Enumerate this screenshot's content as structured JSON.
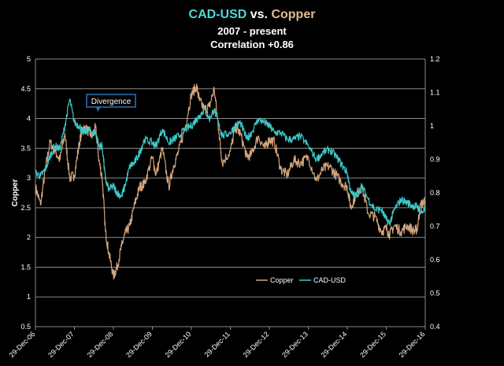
{
  "chart_data": {
    "type": "line",
    "title_parts": [
      {
        "text": "CAD-USD",
        "color": "#4fd7d7"
      },
      {
        "text": " vs. ",
        "color": "#ffffff"
      },
      {
        "text": "Copper",
        "color": "#e0bb98"
      }
    ],
    "subtitle": "2007 - present",
    "subtitle2": "Correlation  +0.86",
    "ylabel": "Copper",
    "y_left": {
      "min": 0.5,
      "max": 5,
      "ticks": [
        "0.5",
        "1",
        "1.5",
        "2",
        "2.5",
        "3",
        "3.5",
        "4",
        "4.5",
        "5"
      ]
    },
    "y_right": {
      "min": 0.4,
      "max": 1.2,
      "ticks": [
        "0.4",
        "0.5",
        "0.6",
        "0.7",
        "0.8",
        "0.9",
        "1",
        "1.1",
        "1.2"
      ]
    },
    "x_ticks": [
      "29-Dec-06",
      "29-Dec-07",
      "29-Dec-08",
      "29-Dec-09",
      "29-Dec-10",
      "29-Dec-11",
      "29-Dec-12",
      "29-Dec-13",
      "29-Dec-14",
      "29-Dec-15",
      "29-Dec-16"
    ],
    "x_range": [
      "2006-12-29",
      "2016-12-29"
    ],
    "grid": true,
    "annotation": {
      "text": "Divergence",
      "date": "2008-05-15",
      "value": 4.0
    },
    "legend": {
      "position": "bottom-right",
      "items": [
        "Copper",
        "CAD-USD"
      ]
    },
    "series": [
      {
        "name": "Copper",
        "axis": "left",
        "color": "#d4a57c",
        "points": [
          [
            "2006-12-29",
            2.85
          ],
          [
            "2007-02-15",
            2.55
          ],
          [
            "2007-04-01",
            3.15
          ],
          [
            "2007-05-15",
            3.6
          ],
          [
            "2007-07-01",
            3.45
          ],
          [
            "2007-08-15",
            3.3
          ],
          [
            "2007-10-01",
            3.75
          ],
          [
            "2007-11-15",
            3.0
          ],
          [
            "2007-12-29",
            3.05
          ],
          [
            "2008-02-15",
            3.6
          ],
          [
            "2008-03-15",
            3.85
          ],
          [
            "2008-05-01",
            3.8
          ],
          [
            "2008-06-15",
            3.7
          ],
          [
            "2008-07-15",
            3.85
          ],
          [
            "2008-08-15",
            3.3
          ],
          [
            "2008-09-15",
            3.0
          ],
          [
            "2008-10-15",
            2.1
          ],
          [
            "2008-11-15",
            1.75
          ],
          [
            "2008-12-29",
            1.35
          ],
          [
            "2009-02-01",
            1.5
          ],
          [
            "2009-03-15",
            1.85
          ],
          [
            "2009-04-15",
            2.05
          ],
          [
            "2009-06-01",
            2.2
          ],
          [
            "2009-07-15",
            2.55
          ],
          [
            "2009-09-01",
            2.85
          ],
          [
            "2009-10-15",
            2.9
          ],
          [
            "2009-12-29",
            3.35
          ],
          [
            "2010-02-01",
            3.05
          ],
          [
            "2010-04-01",
            3.5
          ],
          [
            "2010-06-01",
            2.85
          ],
          [
            "2010-07-15",
            3.2
          ],
          [
            "2010-09-01",
            3.45
          ],
          [
            "2010-11-01",
            3.85
          ],
          [
            "2010-12-29",
            4.4
          ],
          [
            "2011-02-15",
            4.55
          ],
          [
            "2011-03-15",
            4.3
          ],
          [
            "2011-05-01",
            4.15
          ],
          [
            "2011-06-15",
            4.2
          ],
          [
            "2011-08-01",
            4.5
          ],
          [
            "2011-09-15",
            3.75
          ],
          [
            "2011-10-15",
            3.25
          ],
          [
            "2011-12-29",
            3.45
          ],
          [
            "2012-02-15",
            3.85
          ],
          [
            "2012-04-01",
            3.75
          ],
          [
            "2012-06-01",
            3.35
          ],
          [
            "2012-07-15",
            3.4
          ],
          [
            "2012-09-15",
            3.7
          ],
          [
            "2012-11-15",
            3.5
          ],
          [
            "2012-12-29",
            3.65
          ],
          [
            "2013-02-15",
            3.6
          ],
          [
            "2013-04-15",
            3.15
          ],
          [
            "2013-06-15",
            3.05
          ],
          [
            "2013-08-15",
            3.3
          ],
          [
            "2013-10-15",
            3.25
          ],
          [
            "2013-12-29",
            3.35
          ],
          [
            "2014-03-15",
            2.95
          ],
          [
            "2014-05-15",
            3.15
          ],
          [
            "2014-07-15",
            3.2
          ],
          [
            "2014-09-15",
            3.05
          ],
          [
            "2014-11-15",
            2.9
          ],
          [
            "2014-12-29",
            2.85
          ],
          [
            "2015-02-01",
            2.5
          ],
          [
            "2015-03-15",
            2.7
          ],
          [
            "2015-05-15",
            2.85
          ],
          [
            "2015-07-15",
            2.4
          ],
          [
            "2015-09-15",
            2.35
          ],
          [
            "2015-11-15",
            2.1
          ],
          [
            "2015-12-29",
            2.15
          ],
          [
            "2016-02-01",
            2.05
          ],
          [
            "2016-03-15",
            2.2
          ],
          [
            "2016-05-15",
            2.1
          ],
          [
            "2016-07-15",
            2.2
          ],
          [
            "2016-09-15",
            2.1
          ],
          [
            "2016-10-15",
            2.15
          ],
          [
            "2016-11-15",
            2.55
          ],
          [
            "2016-12-29",
            2.6
          ]
        ]
      },
      {
        "name": "CAD-USD",
        "axis": "right",
        "color": "#3fc8c8",
        "points": [
          [
            "2006-12-29",
            0.86
          ],
          [
            "2007-02-15",
            0.85
          ],
          [
            "2007-04-01",
            0.87
          ],
          [
            "2007-05-15",
            0.91
          ],
          [
            "2007-07-01",
            0.94
          ],
          [
            "2007-08-15",
            0.93
          ],
          [
            "2007-10-01",
            1.0
          ],
          [
            "2007-11-15",
            1.08
          ],
          [
            "2007-12-29",
            1.01
          ],
          [
            "2008-02-15",
            1.0
          ],
          [
            "2008-03-15",
            0.98
          ],
          [
            "2008-05-01",
            0.99
          ],
          [
            "2008-06-15",
            0.98
          ],
          [
            "2008-07-15",
            0.98
          ],
          [
            "2008-08-15",
            0.94
          ],
          [
            "2008-09-15",
            0.94
          ],
          [
            "2008-10-15",
            0.84
          ],
          [
            "2008-11-15",
            0.81
          ],
          [
            "2008-12-29",
            0.82
          ],
          [
            "2009-02-01",
            0.8
          ],
          [
            "2009-03-15",
            0.79
          ],
          [
            "2009-04-15",
            0.82
          ],
          [
            "2009-06-01",
            0.88
          ],
          [
            "2009-07-15",
            0.89
          ],
          [
            "2009-09-01",
            0.92
          ],
          [
            "2009-10-15",
            0.96
          ],
          [
            "2009-12-29",
            0.95
          ],
          [
            "2010-02-01",
            0.94
          ],
          [
            "2010-04-01",
            0.99
          ],
          [
            "2010-06-01",
            0.95
          ],
          [
            "2010-07-15",
            0.96
          ],
          [
            "2010-09-01",
            0.97
          ],
          [
            "2010-11-01",
            0.99
          ],
          [
            "2010-12-29",
            1.0
          ],
          [
            "2011-02-15",
            1.02
          ],
          [
            "2011-03-15",
            1.03
          ],
          [
            "2011-05-01",
            1.05
          ],
          [
            "2011-06-15",
            1.02
          ],
          [
            "2011-08-01",
            1.05
          ],
          [
            "2011-09-15",
            1.0
          ],
          [
            "2011-10-15",
            0.97
          ],
          [
            "2011-12-29",
            0.98
          ],
          [
            "2012-02-15",
            1.0
          ],
          [
            "2012-04-01",
            1.01
          ],
          [
            "2012-06-01",
            0.96
          ],
          [
            "2012-07-15",
            0.98
          ],
          [
            "2012-09-15",
            1.02
          ],
          [
            "2012-11-15",
            1.01
          ],
          [
            "2012-12-29",
            1.0
          ],
          [
            "2013-02-15",
            0.98
          ],
          [
            "2013-04-15",
            0.98
          ],
          [
            "2013-06-15",
            0.96
          ],
          [
            "2013-08-15",
            0.96
          ],
          [
            "2013-10-15",
            0.97
          ],
          [
            "2013-12-29",
            0.94
          ],
          [
            "2014-03-15",
            0.9
          ],
          [
            "2014-05-15",
            0.92
          ],
          [
            "2014-07-15",
            0.93
          ],
          [
            "2014-09-15",
            0.91
          ],
          [
            "2014-11-15",
            0.88
          ],
          [
            "2014-12-29",
            0.86
          ],
          [
            "2015-02-01",
            0.8
          ],
          [
            "2015-03-15",
            0.79
          ],
          [
            "2015-05-15",
            0.82
          ],
          [
            "2015-07-15",
            0.78
          ],
          [
            "2015-09-15",
            0.75
          ],
          [
            "2015-11-15",
            0.75
          ],
          [
            "2015-12-29",
            0.72
          ],
          [
            "2016-02-01",
            0.71
          ],
          [
            "2016-03-15",
            0.75
          ],
          [
            "2016-05-15",
            0.78
          ],
          [
            "2016-07-15",
            0.77
          ],
          [
            "2016-09-15",
            0.76
          ],
          [
            "2016-10-15",
            0.76
          ],
          [
            "2016-11-15",
            0.74
          ],
          [
            "2016-12-29",
            0.75
          ]
        ]
      }
    ]
  }
}
